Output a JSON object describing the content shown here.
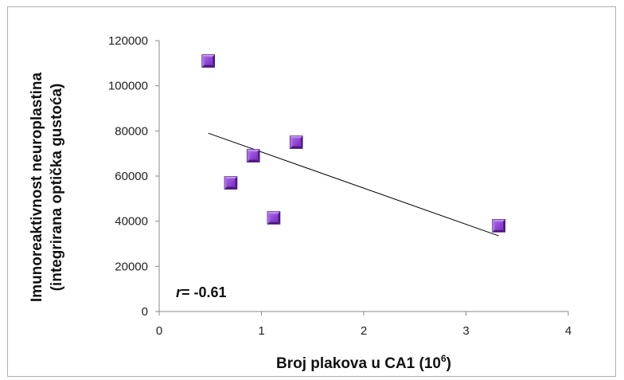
{
  "chart_data": {
    "type": "scatter",
    "title": "",
    "xlabel_main": "Broj plakova u CA1 (10",
    "xlabel_sup": "6",
    "xlabel_close": ")",
    "ylabel_line1": "Imunoreaktivnost neuroplastina",
    "ylabel_line2": "(integrirana optička gustoća)",
    "xlim": [
      0,
      4
    ],
    "ylim": [
      0,
      120000
    ],
    "x_ticks": [
      0,
      1,
      2,
      3,
      4
    ],
    "x_tick_labels": [
      "0",
      "1",
      "2",
      "3",
      "4"
    ],
    "y_ticks": [
      0,
      20000,
      40000,
      60000,
      80000,
      100000,
      120000
    ],
    "y_tick_labels": [
      "0",
      "20000",
      "40000",
      "60000",
      "80000",
      "100000",
      "120000"
    ],
    "grid": false,
    "legend": "none",
    "series": [
      {
        "marker": "square-3d",
        "color": "#8a3fc4",
        "points": [
          {
            "x": 0.48,
            "y": 111000
          },
          {
            "x": 0.7,
            "y": 57000
          },
          {
            "x": 0.92,
            "y": 69000
          },
          {
            "x": 1.12,
            "y": 41500
          },
          {
            "x": 1.34,
            "y": 75000
          },
          {
            "x": 3.32,
            "y": 38000
          }
        ]
      }
    ],
    "trendline": {
      "type": "linear",
      "x_start": 0.48,
      "x_end": 3.32,
      "y_start": 79000,
      "y_end": 33500,
      "color": "#000000"
    },
    "annotation": {
      "r_symbol": "r",
      "r_text": "= -0.61"
    }
  }
}
